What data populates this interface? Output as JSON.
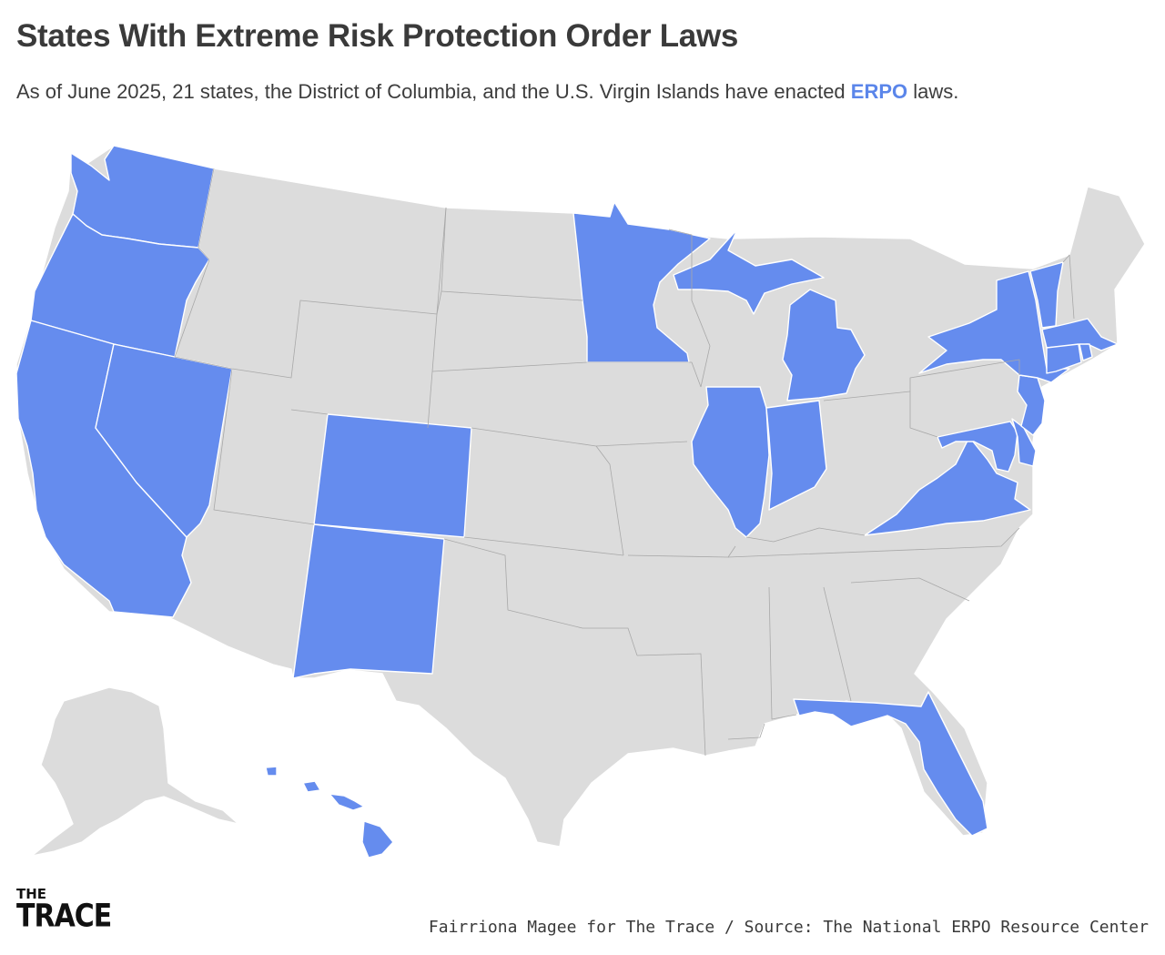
{
  "header": {
    "title": "States With Extreme Risk Protection Order Laws",
    "subtitle_before": "As of June 2025, 21 states, the District of Columbia, and the U.S. Virgin Islands have enacted ",
    "subtitle_highlight": "ERPO",
    "subtitle_after": " laws."
  },
  "colors": {
    "erpo": "#658cee",
    "no_erpo": "#dcdcdc",
    "highlight_text": "#5b86ea"
  },
  "map": {
    "erpo_states": [
      "Washington",
      "Oregon",
      "California",
      "Nevada",
      "Colorado",
      "New Mexico",
      "Minnesota",
      "Michigan",
      "Illinois",
      "Indiana",
      "Florida",
      "Virginia",
      "Maryland",
      "Delaware",
      "New Jersey",
      "New York",
      "Vermont",
      "Massachusetts",
      "Connecticut",
      "Rhode Island",
      "Hawaii",
      "District of Columbia"
    ]
  },
  "footer": {
    "logo_top": "THE",
    "logo_bottom": "TRACE",
    "credit": "Fairriona Magee for The Trace / Source: The National ERPO Resource Center"
  }
}
